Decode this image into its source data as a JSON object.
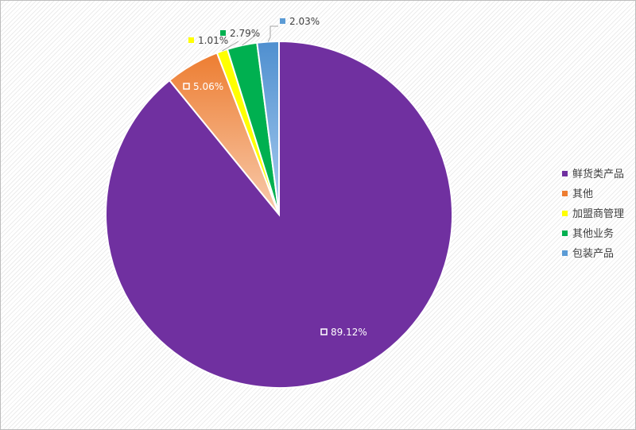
{
  "chart_data": {
    "type": "pie",
    "title": "",
    "legend_position": "right",
    "labels": [
      "鲜货类产品",
      "其他",
      "加盟商管理",
      "其他业务",
      "包装产品"
    ],
    "values": [
      89.12,
      5.06,
      1.01,
      2.79,
      2.03
    ],
    "value_labels": [
      "89.12%",
      "5.06%",
      "1.01%",
      "2.79%",
      "2.03%"
    ],
    "colors": [
      "#7030a0",
      "#f4a460",
      "#ffff00",
      "#00b050",
      "#5b9bd5"
    ]
  }
}
